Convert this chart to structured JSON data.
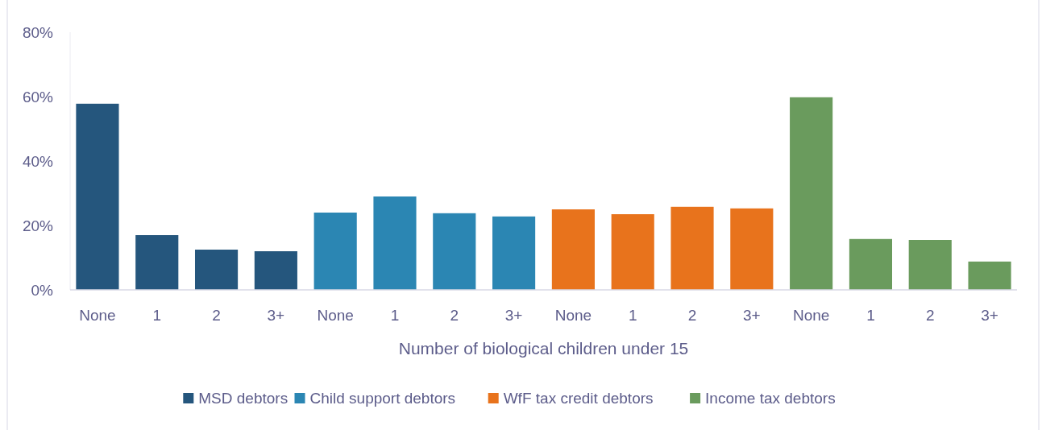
{
  "chart_data": {
    "type": "bar",
    "xlabel": "Number of biological children under 15",
    "categories": [
      "None",
      "1",
      "2",
      "3+",
      "None",
      "1",
      "2",
      "3+",
      "None",
      "1",
      "2",
      "3+",
      "None",
      "1",
      "2",
      "3+"
    ],
    "series": [
      {
        "name": "MSD debtors",
        "color": "#25567d",
        "values": [
          57.8,
          17,
          12.5,
          12,
          null,
          null,
          null,
          null,
          null,
          null,
          null,
          null,
          null,
          null,
          null,
          null
        ]
      },
      {
        "name": "Child support debtors",
        "color": "#2b86b3",
        "values": [
          null,
          null,
          null,
          null,
          24,
          29,
          23.8,
          22.8,
          null,
          null,
          null,
          null,
          null,
          null,
          null,
          null
        ]
      },
      {
        "name": "WfF tax credit debtors",
        "color": "#e8731c",
        "values": [
          null,
          null,
          null,
          null,
          null,
          null,
          null,
          null,
          25,
          23.5,
          25.8,
          25.3,
          null,
          null,
          null,
          null
        ]
      },
      {
        "name": "Income tax debtors",
        "color": "#6a9b5d",
        "values": [
          null,
          null,
          null,
          null,
          null,
          null,
          null,
          null,
          null,
          null,
          null,
          null,
          59.8,
          15.8,
          15.5,
          8.8
        ]
      }
    ],
    "ylim": [
      0,
      80
    ],
    "yticks": [
      {
        "value": 0,
        "label": "0%"
      },
      {
        "value": 20,
        "label": "20%"
      },
      {
        "value": 40,
        "label": "40%"
      },
      {
        "value": 60,
        "label": "60%"
      },
      {
        "value": 80,
        "label": "80%"
      }
    ],
    "legend": "bottom"
  }
}
